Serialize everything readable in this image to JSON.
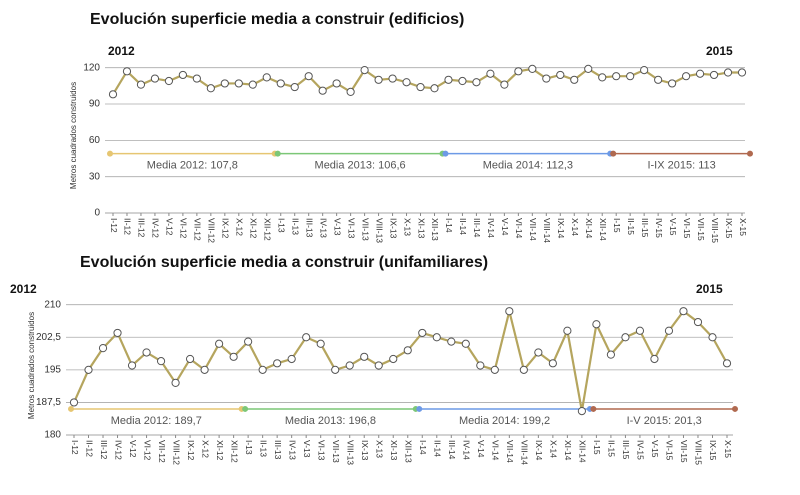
{
  "chart_data": [
    {
      "type": "line",
      "title": "Evolución superficie media a construir (edificios)",
      "y_label": "Metros cuadrados construidos",
      "annotations": [
        "2012",
        "2015"
      ],
      "categories": [
        "I-12",
        "II-12",
        "III-12",
        "IV-12",
        "V-12",
        "VI-12",
        "VII-12",
        "VIII-12",
        "IX-12",
        "X-12",
        "XI-12",
        "XII-12",
        "I-13",
        "II-13",
        "III-13",
        "IV-13",
        "V-13",
        "VI-13",
        "VII-13",
        "VIII-13",
        "IX-13",
        "X-13",
        "XI-13",
        "XII-13",
        "I-14",
        "II-14",
        "III-14",
        "IV-14",
        "V-14",
        "VI-14",
        "VII-14",
        "VIII-14",
        "IX-14",
        "X-14",
        "XI-14",
        "XII-14",
        "I-15",
        "II-15",
        "III-15",
        "IV-15",
        "V-15",
        "VI-15",
        "VII-15",
        "VIII-15",
        "IX-15",
        "X-15"
      ],
      "values": [
        98,
        117,
        106,
        111,
        109,
        114,
        111,
        103,
        107,
        107,
        106,
        112,
        107,
        104,
        113,
        101,
        107,
        100,
        118,
        110,
        111,
        108,
        104,
        103,
        110,
        109,
        108,
        115,
        106,
        117,
        119,
        111,
        114,
        110,
        119,
        112,
        113,
        113,
        118,
        110,
        107,
        113,
        115,
        114,
        116,
        116
      ],
      "color": "#b5a55e",
      "ylim": [
        0,
        128
      ],
      "yticks": [
        0,
        30,
        60,
        90,
        120
      ],
      "grid": true,
      "periods": [
        {
          "label": "Media 2012: 107,8",
          "color": "#e6c672",
          "y": 49
        },
        {
          "label": "Media 2013: 106,6",
          "color": "#7cc777",
          "y": 49
        },
        {
          "label": "Media 2014: 112,3",
          "color": "#6d9ae6",
          "y": 49
        },
        {
          "label": "I-IX 2015: 113",
          "color": "#b0694f",
          "y": 49
        }
      ]
    },
    {
      "type": "line",
      "title": "Evolución superficie media a construir (unifamiliares)",
      "y_label": "Metros cuadrados construidos",
      "annotations": [
        "2012",
        "2015"
      ],
      "categories": [
        "I-12",
        "II-12",
        "III-12",
        "IV-12",
        "V-12",
        "VI-12",
        "VII-12",
        "VIII-12",
        "IX-12",
        "X-12",
        "XI-12",
        "XII-12",
        "I-13",
        "II-13",
        "III-13",
        "IV-13",
        "V-13",
        "VI-13",
        "VII-13",
        "VIII-13",
        "IX-13",
        "X-13",
        "XI-13",
        "XII-13",
        "I-14",
        "II-14",
        "III-14",
        "IV-14",
        "V-14",
        "VI-14",
        "VII-14",
        "VIII-14",
        "IX-14",
        "X-14",
        "XI-14",
        "XII-14",
        "I-15",
        "II-15",
        "III-15",
        "IV-15",
        "V-15",
        "VI-15",
        "VII-15",
        "VIII-15",
        "IX-15",
        "X-15"
      ],
      "values": [
        187.5,
        195,
        200,
        203.5,
        196,
        199,
        197,
        192,
        197.5,
        195,
        201,
        198,
        201.5,
        195,
        196.5,
        197.5,
        202.5,
        201,
        195,
        196,
        198,
        196,
        197.5,
        199.5,
        203.5,
        202.5,
        201.5,
        201,
        196,
        195,
        208.5,
        195,
        199,
        196.5,
        204,
        185.5,
        205.5,
        198.5,
        202.5,
        204,
        197.5,
        204,
        208.5,
        206,
        202.5,
        196.5
      ],
      "color": "#b5a55e",
      "ylim": [
        180,
        212
      ],
      "yticks": [
        180,
        {
          "value": 187.5,
          "label": "187,5"
        },
        195,
        {
          "value": 202.5,
          "label": "202,5"
        },
        210
      ],
      "grid": true,
      "periods": [
        {
          "label": "Media 2012: 189,7",
          "color": "#e6c672",
          "y": 186
        },
        {
          "label": "Media 2013: 196,8",
          "color": "#7cc777",
          "y": 186
        },
        {
          "label": "Media 2014: 199,2",
          "color": "#6d9ae6",
          "y": 186
        },
        {
          "label": "I-V 2015: 201,3",
          "color": "#b0694f",
          "y": 186
        }
      ]
    }
  ]
}
